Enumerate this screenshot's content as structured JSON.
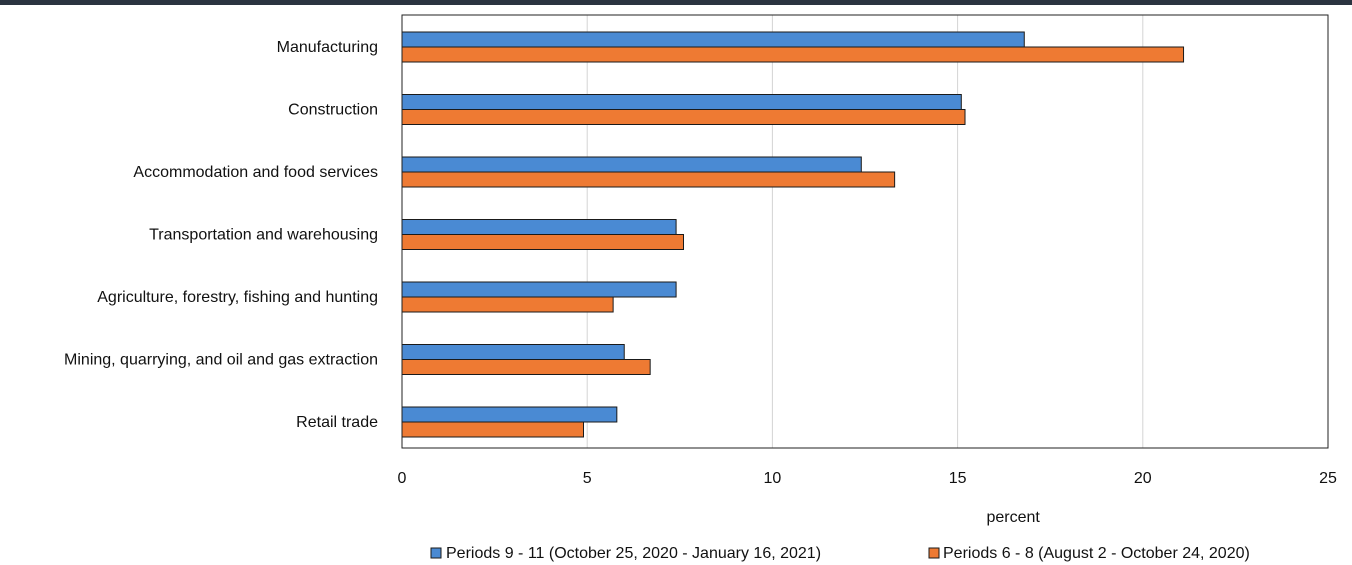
{
  "chart_data": {
    "type": "bar",
    "orientation": "horizontal",
    "categories": [
      "Manufacturing",
      "Construction",
      "Accommodation and food services",
      "Transportation and warehousing",
      "Agriculture, forestry, fishing and hunting",
      "Mining, quarrying, and oil and gas extraction",
      "Retail trade"
    ],
    "series": [
      {
        "name": "Periods 9 - 11 (October 25, 2020 - January 16, 2021)",
        "color": "#4a8ad3",
        "values": [
          16.8,
          15.1,
          12.4,
          7.4,
          7.4,
          6.0,
          5.8
        ]
      },
      {
        "name": "Periods 6 - 8 (August 2 - October 24, 2020)",
        "color": "#ee7a33",
        "values": [
          21.1,
          15.2,
          13.3,
          7.6,
          5.7,
          6.7,
          4.9
        ]
      }
    ],
    "xlabel": "percent",
    "ylabel": "",
    "xlim": [
      0,
      25
    ],
    "xticks": [
      0,
      5,
      10,
      15,
      20,
      25
    ],
    "grid": "vertical",
    "legend_position": "bottom"
  }
}
